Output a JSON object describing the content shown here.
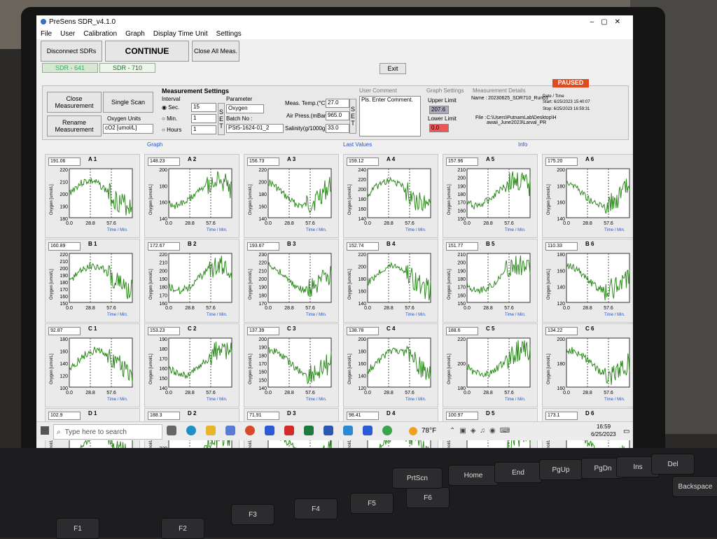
{
  "app": {
    "title": "PreSens SDR_v4.1.0",
    "menu": [
      "File",
      "User",
      "Calibration",
      "Graph",
      "Display Time Unit",
      "Settings"
    ]
  },
  "toolbar": {
    "disconnect": "Disconnect SDRs",
    "continue": "CONTINUE",
    "close_all": "Close All Meas."
  },
  "tabs": [
    "SDR - 641",
    "SDR - 710"
  ],
  "exit": "Exit",
  "paused": "PAUSED",
  "controls": {
    "close_measurement": "Close Measurement",
    "single_scan": "Single Scan",
    "rename_measurement": "Rename Measurement",
    "oxygen_units_label": "Oxygen Units",
    "oxygen_units_value": "cO2 [umol/L]",
    "measurement_settings": "Measurement Settings",
    "interval": "Interval",
    "sec": "Sec.",
    "min": "Min.",
    "hours": "Hours",
    "sec_value": "15",
    "min_value": "1",
    "hours_value": "1",
    "parameter": "Parameter",
    "parameter_value": "Oxygen",
    "batch_no": "Batch No :",
    "batch_value": "PSt5-1624-01_2",
    "meas_temp": "Meas. Temp.(°C)",
    "meas_temp_value": "27.0",
    "air_press": "Air Press.(mBar)",
    "air_press_value": "965.0",
    "salinity": "Salinity(g/1000g)",
    "salinity_value": "33.0",
    "user_comment": "User Comment",
    "comment_value": "Pls. Enter Comment.",
    "graph_settings": "Graph Settings",
    "upper_limit": "Upper Limit",
    "upper_value": "207.6",
    "lower_limit": "Lower Limit",
    "lower_value": "0.0",
    "meas_details": "Measurement Details",
    "name_label": "Name :",
    "name_value": "20230625_SDR710_Run01",
    "file_label": "File :",
    "file_value": "C:\\Users\\PutnamLab\\Desktop\\Hawaii_June2023\\Larval_PR",
    "date_label": "Date / Time",
    "start": "Start: 6/25/2023 15:40:07",
    "stop": "Stop: 6/25/2023 16:59:31"
  },
  "graph_tabs": [
    "Graph",
    "Last Values",
    "Info"
  ],
  "chart_common": {
    "x_ticks": [
      "0.0",
      "28.8",
      "57.6"
    ],
    "xlabel": "Time / Min.",
    "ylabel": "Oxygen [umol/L]",
    "line_color": "#2e8b1e"
  },
  "chart_data": [
    {
      "type": "line",
      "title": "A 1",
      "value": "191.06",
      "yticks": [
        "220",
        "210",
        "200",
        "190",
        "180"
      ]
    },
    {
      "type": "line",
      "title": "A 2",
      "value": "148.23",
      "yticks": [
        "200",
        "180",
        "160",
        "140"
      ]
    },
    {
      "type": "line",
      "title": "A 3",
      "value": "156.73",
      "yticks": [
        "220",
        "200",
        "180",
        "160",
        "140"
      ]
    },
    {
      "type": "line",
      "title": "A 4",
      "value": "159.12",
      "yticks": [
        "240",
        "220",
        "200",
        "180",
        "160",
        "140"
      ]
    },
    {
      "type": "line",
      "title": "A 5",
      "value": "157.96",
      "yticks": [
        "210",
        "200",
        "190",
        "180",
        "170",
        "160",
        "150"
      ]
    },
    {
      "type": "line",
      "title": "A 6",
      "value": "175.20",
      "yticks": [
        "200",
        "180",
        "160",
        "140"
      ]
    },
    {
      "type": "line",
      "title": "B 1",
      "value": "160.89",
      "yticks": [
        "220",
        "210",
        "200",
        "190",
        "180",
        "170",
        "160",
        "150"
      ]
    },
    {
      "type": "line",
      "title": "B 2",
      "value": "172.67",
      "yticks": [
        "220",
        "210",
        "200",
        "190",
        "180",
        "170",
        "160"
      ]
    },
    {
      "type": "line",
      "title": "B 3",
      "value": "193.67",
      "yticks": [
        "230",
        "220",
        "210",
        "200",
        "190",
        "180",
        "170"
      ]
    },
    {
      "type": "line",
      "title": "B 4",
      "value": "152.74",
      "yticks": [
        "220",
        "200",
        "180",
        "160",
        "140"
      ]
    },
    {
      "type": "line",
      "title": "B 5",
      "value": "151.77",
      "yticks": [
        "210",
        "200",
        "190",
        "180",
        "170",
        "160",
        "150"
      ]
    },
    {
      "type": "line",
      "title": "B 6",
      "value": "110.33",
      "yticks": [
        "180",
        "160",
        "140",
        "120"
      ]
    },
    {
      "type": "line",
      "title": "C 1",
      "value": "92.87",
      "yticks": [
        "180",
        "160",
        "140",
        "120",
        "100"
      ]
    },
    {
      "type": "line",
      "title": "C 2",
      "value": "153.23",
      "yticks": [
        "190",
        "180",
        "170",
        "160",
        "150",
        "140"
      ]
    },
    {
      "type": "line",
      "title": "C 3",
      "value": "137.39",
      "yticks": [
        "200",
        "190",
        "180",
        "170",
        "160",
        "150",
        "140"
      ]
    },
    {
      "type": "line",
      "title": "C 4",
      "value": "138.78",
      "yticks": [
        "200",
        "180",
        "160",
        "140",
        "120"
      ]
    },
    {
      "type": "line",
      "title": "C 5",
      "value": "188.6",
      "yticks": [
        "220",
        "200",
        "180"
      ]
    },
    {
      "type": "line",
      "title": "C 6",
      "value": "134.22",
      "yticks": [
        "200",
        "180",
        "160"
      ]
    },
    {
      "type": "line",
      "title": "D 1",
      "value": "102.9",
      "yticks": [
        "180"
      ]
    },
    {
      "type": "line",
      "title": "D 2",
      "value": "188.3",
      "yticks": [
        "230",
        "220",
        "210"
      ]
    },
    {
      "type": "line",
      "title": "D 3",
      "value": "71.91",
      "yticks": [
        "200"
      ]
    },
    {
      "type": "line",
      "title": "D 4",
      "value": "98.41",
      "yticks": [
        "200"
      ]
    },
    {
      "type": "line",
      "title": "D 5",
      "value": "100.97",
      "yticks": [
        "200"
      ]
    },
    {
      "type": "line",
      "title": "D 6",
      "value": "173.1",
      "yticks": [
        "200"
      ]
    }
  ],
  "taskbar": {
    "search_placeholder": "Type here to search",
    "weather": "78°F",
    "time": "16:59",
    "date": "6/25/2023"
  },
  "keyboard": [
    "F1",
    "F2",
    "F3",
    "F4",
    "F5",
    "F6",
    "PrtScn",
    "Home",
    "End",
    "PgUp",
    "PgDn",
    "Ins",
    "Del",
    "Backspace"
  ]
}
